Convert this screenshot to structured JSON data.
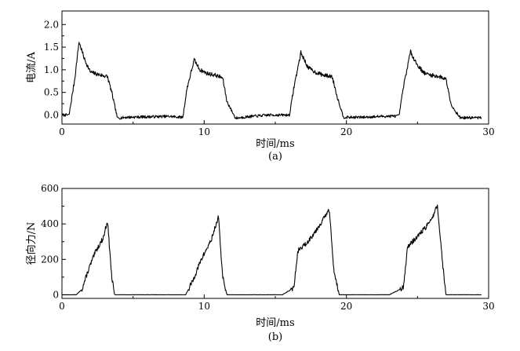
{
  "chart_data": [
    {
      "type": "line",
      "caption": "(a)",
      "xlabel": "时间/ms",
      "ylabel": "电流/A",
      "xlim": [
        0,
        30
      ],
      "ylim": [
        -0.2,
        2.3
      ],
      "xticks": [
        "0",
        "10",
        "20",
        "30"
      ],
      "yticks": [
        "0.0",
        "0.5",
        "1.0",
        "1.5",
        "2.0"
      ],
      "grid": false,
      "series": [
        {
          "color": "#000000",
          "x": [
            0,
            0.5,
            0.9,
            1.2,
            1.6,
            2.0,
            2.5,
            3.2,
            3.5,
            3.9,
            4.5,
            6.0,
            7.5,
            8.5,
            8.8,
            9.3,
            9.7,
            10.2,
            10.8,
            11.3,
            11.6,
            12.2,
            13.0,
            14.5,
            16.0,
            16.3,
            16.8,
            17.3,
            17.8,
            18.4,
            19.0,
            19.4,
            19.8,
            21.0,
            22.5,
            23.7,
            24.0,
            24.5,
            25.0,
            25.5,
            26.0,
            26.5,
            27.0,
            27.4,
            28.0,
            29.5
          ],
          "y": [
            0.0,
            0.0,
            0.8,
            1.62,
            1.22,
            0.95,
            0.9,
            0.85,
            0.5,
            -0.07,
            -0.05,
            -0.04,
            -0.03,
            -0.05,
            0.6,
            1.22,
            1.0,
            0.92,
            0.88,
            0.82,
            0.3,
            -0.07,
            -0.04,
            0.0,
            0.0,
            0.6,
            1.38,
            1.05,
            0.95,
            0.88,
            0.85,
            0.35,
            -0.05,
            -0.05,
            -0.03,
            -0.02,
            0.6,
            1.4,
            1.1,
            0.92,
            0.88,
            0.85,
            0.8,
            0.2,
            -0.06,
            -0.06
          ]
        }
      ]
    },
    {
      "type": "line",
      "caption": "(b)",
      "xlabel": "时间/ms",
      "ylabel": "径向力/N",
      "xlim": [
        0,
        30
      ],
      "ylim": [
        -20,
        600
      ],
      "xticks": [
        "0",
        "10",
        "20",
        "30"
      ],
      "yticks": [
        "0",
        "200",
        "400",
        "600"
      ],
      "grid": false,
      "series": [
        {
          "color": "#000000",
          "x": [
            0,
            1.0,
            1.4,
            1.9,
            2.4,
            2.9,
            3.2,
            3.5,
            3.7,
            4.5,
            7.5,
            8.7,
            9.2,
            9.8,
            10.5,
            11.0,
            11.3,
            11.6,
            12.5,
            15.5,
            16.3,
            16.6,
            17.2,
            18.0,
            18.8,
            19.1,
            19.5,
            20.5,
            23.0,
            24.0,
            24.3,
            25.0,
            25.8,
            26.4,
            26.8,
            27.0,
            28.5,
            29.5
          ],
          "y": [
            0,
            0,
            30,
            150,
            250,
            320,
            420,
            100,
            0,
            0,
            0,
            0,
            80,
            200,
            310,
            440,
            100,
            0,
            0,
            0,
            40,
            250,
            290,
            380,
            480,
            150,
            0,
            0,
            0,
            40,
            270,
            330,
            400,
            500,
            150,
            0,
            0,
            0
          ]
        }
      ]
    }
  ]
}
